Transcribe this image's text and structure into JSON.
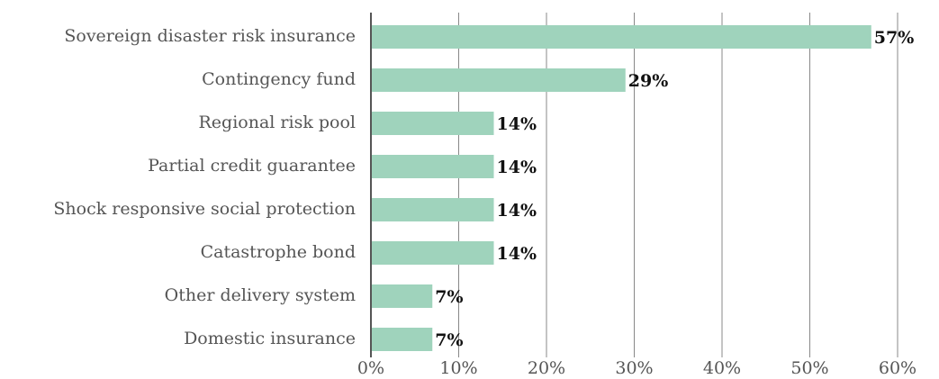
{
  "chart_data": {
    "type": "bar",
    "orientation": "horizontal",
    "categories": [
      "Sovereign disaster risk insurance",
      "Contingency fund",
      "Regional risk pool",
      "Partial credit guarantee",
      "Shock responsive social protection",
      "Catastrophe bond",
      "Other delivery system",
      "Domestic insurance"
    ],
    "values": [
      57,
      29,
      14,
      14,
      14,
      14,
      7,
      7
    ],
    "value_labels": [
      "57%",
      "29%",
      "14%",
      "14%",
      "14%",
      "14%",
      "7%",
      "7%"
    ],
    "color": "#9fd3bc",
    "xlim": [
      0,
      60
    ],
    "xticks": [
      {
        "value": 0,
        "label": "0%"
      },
      {
        "value": 10,
        "label": "10%"
      },
      {
        "value": 20,
        "label": "20%"
      },
      {
        "value": 30,
        "label": "30%"
      },
      {
        "value": 40,
        "label": "40%"
      },
      {
        "value": 50,
        "label": "50%"
      },
      {
        "value": 60,
        "label": "60%"
      }
    ],
    "grid": true
  }
}
